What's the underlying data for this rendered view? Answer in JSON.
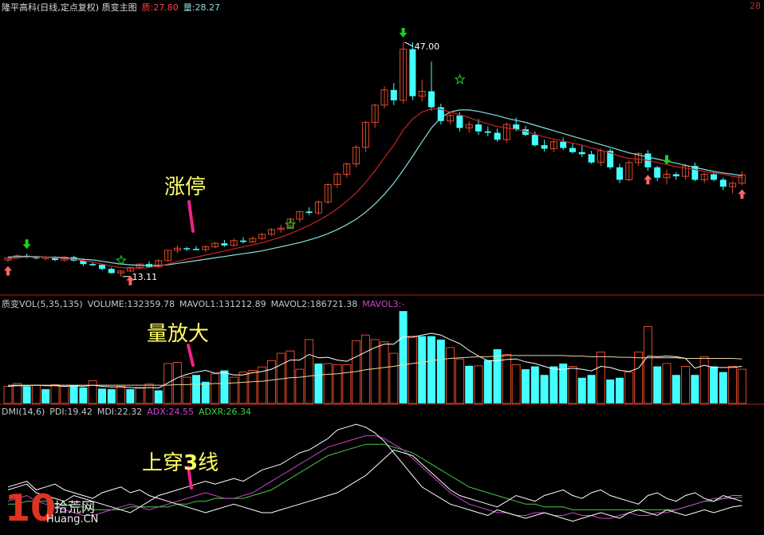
{
  "header": {
    "title": "隆平高科(日线,定点复权) 质变主图",
    "zhi_label": "质:27.80",
    "liang_label": "量:28.27",
    "corner": "28"
  },
  "vol_header": {
    "name": "质变VOL(5,35,135)",
    "volume": "VOLUME:132359.78",
    "mavol1": "MAVOL1:131212.89",
    "mavol2": "MAVOL2:186721.38",
    "mavol3": "MAVOL3:-"
  },
  "dmi_header": {
    "name": "DMI(14,6)",
    "pdi": "PDI:19.42",
    "mdi": "MDI:22.32",
    "adx": "ADX:24.55",
    "adxr": "ADXR:26.34"
  },
  "annotations": {
    "limit_up": "涨停",
    "volume_up": "量放大",
    "cross": "上穿",
    "cross_num": "3",
    "cross_tail": "线"
  },
  "watermark": {
    "number": "10",
    "site": "拾荒网",
    "domain": "Huang.CN"
  },
  "colors": {
    "up": "#e04a2a",
    "down": "#44ffff",
    "ma_red": "#cc2222",
    "ma_cyan": "#88dddd",
    "pdi": "#ffffff",
    "mdi": "#ffffff",
    "adx": "#cc44cc",
    "adxr": "#44cc44",
    "annotation": "#ffff66",
    "arrow_green": "#22cc22",
    "arrow_red": "#ff6666"
  },
  "chart_data": [
    {
      "type": "candlestick",
      "price_labels": {
        "high": "47.00",
        "low": "13.11"
      },
      "candles": [
        [
          15.5,
          15.9,
          15.2,
          15.8
        ],
        [
          15.8,
          16.3,
          15.6,
          16.1
        ],
        [
          16.1,
          16.4,
          15.7,
          15.9
        ],
        [
          15.9,
          16.0,
          15.6,
          15.8
        ],
        [
          15.8,
          16.1,
          15.4,
          15.9
        ],
        [
          15.9,
          16.0,
          15.3,
          15.5
        ],
        [
          15.5,
          16.0,
          15.3,
          15.9
        ],
        [
          15.9,
          16.1,
          15.3,
          15.4
        ],
        [
          15.4,
          15.7,
          14.6,
          14.9
        ],
        [
          14.9,
          15.1,
          14.6,
          14.8
        ],
        [
          14.8,
          15.0,
          14.0,
          14.2
        ],
        [
          14.2,
          14.4,
          13.5,
          13.6
        ],
        [
          13.6,
          14.0,
          13.1,
          13.9
        ],
        [
          13.9,
          14.5,
          13.8,
          14.4
        ],
        [
          14.4,
          15.0,
          14.2,
          14.9
        ],
        [
          14.9,
          15.3,
          14.4,
          14.5
        ],
        [
          14.5,
          15.6,
          14.3,
          15.4
        ],
        [
          15.4,
          16.9,
          15.3,
          16.9
        ],
        [
          16.9,
          17.6,
          16.5,
          17.2
        ],
        [
          17.2,
          17.4,
          16.8,
          17.1
        ],
        [
          17.1,
          17.5,
          16.9,
          17.0
        ],
        [
          17.0,
          17.6,
          16.6,
          17.4
        ],
        [
          17.4,
          18.1,
          17.2,
          17.9
        ],
        [
          17.9,
          18.4,
          17.4,
          17.6
        ],
        [
          17.6,
          18.6,
          17.4,
          18.3
        ],
        [
          18.3,
          18.8,
          17.9,
          18.1
        ],
        [
          18.1,
          18.9,
          18.0,
          18.6
        ],
        [
          18.6,
          19.4,
          18.4,
          19.2
        ],
        [
          19.2,
          20.1,
          19.0,
          19.9
        ],
        [
          19.9,
          20.6,
          19.4,
          20.1
        ],
        [
          20.1,
          21.6,
          19.9,
          21.4
        ],
        [
          21.4,
          22.6,
          20.9,
          22.5
        ],
        [
          22.5,
          23.1,
          22.0,
          22.3
        ],
        [
          22.3,
          24.1,
          22.0,
          23.9
        ],
        [
          23.9,
          26.6,
          23.6,
          26.4
        ],
        [
          26.4,
          28.2,
          25.9,
          27.9
        ],
        [
          27.9,
          29.6,
          27.4,
          29.4
        ],
        [
          29.4,
          32.1,
          28.9,
          31.8
        ],
        [
          31.8,
          35.6,
          31.1,
          35.4
        ],
        [
          35.4,
          38.1,
          34.6,
          37.9
        ],
        [
          37.9,
          40.6,
          37.4,
          40.1
        ],
        [
          40.1,
          41.1,
          37.9,
          38.6
        ],
        [
          38.6,
          47.0,
          38.1,
          46.0
        ],
        [
          46.0,
          47.0,
          38.6,
          39.2
        ],
        [
          39.2,
          41.6,
          38.4,
          39.9
        ],
        [
          39.9,
          44.2,
          37.1,
          37.6
        ],
        [
          37.6,
          38.1,
          35.1,
          35.6
        ],
        [
          35.6,
          36.8,
          35.1,
          36.4
        ],
        [
          36.4,
          36.9,
          34.1,
          34.6
        ],
        [
          34.6,
          35.6,
          33.9,
          35.1
        ],
        [
          35.1,
          35.9,
          33.6,
          34.1
        ],
        [
          34.1,
          34.8,
          33.4,
          33.9
        ],
        [
          33.9,
          34.5,
          32.6,
          32.9
        ],
        [
          32.9,
          35.4,
          32.4,
          35.1
        ],
        [
          35.1,
          36.1,
          34.1,
          34.4
        ],
        [
          34.4,
          34.9,
          33.4,
          33.6
        ],
        [
          33.6,
          34.1,
          31.9,
          32.1
        ],
        [
          32.1,
          32.9,
          31.2,
          31.6
        ],
        [
          31.6,
          32.9,
          31.1,
          32.6
        ],
        [
          32.6,
          33.2,
          31.4,
          31.7
        ],
        [
          31.7,
          32.4,
          30.9,
          31.1
        ],
        [
          31.1,
          32.1,
          30.4,
          30.8
        ],
        [
          30.8,
          31.3,
          29.4,
          29.6
        ],
        [
          29.6,
          31.6,
          29.1,
          31.3
        ],
        [
          31.3,
          31.6,
          28.6,
          28.9
        ],
        [
          28.9,
          29.4,
          26.6,
          27.1
        ],
        [
          27.1,
          29.9,
          26.9,
          29.6
        ],
        [
          29.6,
          31.1,
          29.1,
          30.9
        ],
        [
          30.9,
          31.4,
          28.4,
          28.9
        ],
        [
          28.9,
          29.1,
          26.9,
          27.4
        ],
        [
          27.4,
          28.6,
          26.4,
          27.9
        ],
        [
          27.9,
          28.2,
          27.1,
          27.6
        ],
        [
          27.6,
          29.4,
          27.1,
          29.1
        ],
        [
          29.1,
          29.6,
          26.9,
          27.1
        ],
        [
          27.1,
          28.1,
          26.6,
          27.9
        ],
        [
          27.9,
          28.1,
          26.9,
          27.1
        ],
        [
          27.1,
          27.4,
          25.6,
          26.1
        ],
        [
          26.1,
          26.9,
          25.1,
          26.6
        ],
        [
          26.6,
          28.3,
          26.3,
          27.8
        ]
      ],
      "ma_short": [
        15.6,
        15.8,
        15.9,
        15.9,
        15.9,
        15.8,
        15.7,
        15.6,
        15.4,
        15.2,
        14.9,
        14.6,
        14.4,
        14.3,
        14.3,
        14.4,
        14.6,
        14.9,
        15.3,
        15.6,
        15.9,
        16.2,
        16.5,
        16.8,
        17.1,
        17.4,
        17.7,
        18.0,
        18.4,
        18.8,
        19.3,
        19.9,
        20.5,
        21.2,
        22.0,
        22.9,
        24.0,
        25.2,
        26.7,
        28.4,
        30.3,
        32.1,
        34.3,
        35.9,
        36.9,
        37.4,
        37.3,
        36.9,
        36.5,
        36.1,
        35.6,
        35.2,
        34.8,
        34.6,
        34.4,
        34.1,
        33.7,
        33.3,
        33.0,
        32.7,
        32.4,
        32.1,
        31.7,
        31.4,
        31.0,
        30.5,
        30.2,
        30.1,
        29.9,
        29.6,
        29.3,
        29.0,
        28.8,
        28.6,
        28.3,
        28.1,
        27.9,
        27.6,
        27.4
      ],
      "ma_long": [
        15.9,
        16.0,
        16.0,
        16.0,
        15.9,
        15.9,
        15.8,
        15.7,
        15.6,
        15.5,
        15.3,
        15.1,
        14.9,
        14.8,
        14.7,
        14.7,
        14.7,
        14.8,
        15.0,
        15.2,
        15.4,
        15.6,
        15.8,
        16.0,
        16.2,
        16.4,
        16.6,
        16.8,
        17.1,
        17.4,
        17.7,
        18.0,
        18.4,
        18.8,
        19.3,
        19.9,
        20.6,
        21.4,
        22.4,
        23.6,
        25.0,
        26.6,
        28.5,
        30.5,
        32.6,
        34.6,
        36.1,
        36.9,
        37.2,
        37.2,
        37.0,
        36.7,
        36.4,
        36.0,
        35.7,
        35.4,
        35.0,
        34.6,
        34.2,
        33.8,
        33.4,
        33.0,
        32.6,
        32.2,
        31.8,
        31.4,
        31.0,
        30.7,
        30.4,
        30.1,
        29.8,
        29.5,
        29.2,
        28.9,
        28.6,
        28.3,
        28.1,
        27.9,
        27.7
      ]
    },
    {
      "type": "bar",
      "volume_up": [
        true,
        true,
        false,
        true,
        false,
        true,
        true,
        false,
        false,
        true,
        false,
        false,
        true,
        false,
        true,
        true,
        false,
        true,
        true,
        true,
        false,
        false,
        true,
        false,
        true,
        true,
        true,
        true,
        true,
        true,
        true,
        true,
        true,
        false,
        true,
        true,
        true,
        true,
        true,
        true,
        true,
        true,
        false,
        true,
        false,
        false,
        false,
        true,
        true,
        false,
        true,
        false,
        false,
        true,
        true,
        false,
        false,
        false,
        false,
        false,
        true,
        false,
        false,
        true,
        false,
        false,
        true,
        true,
        true,
        false,
        true,
        false,
        true,
        false,
        true,
        false,
        false,
        true,
        true
      ],
      "volume": [
        30,
        35,
        30,
        32,
        25,
        33,
        30,
        32,
        28,
        40,
        26,
        25,
        30,
        25,
        28,
        34,
        23,
        70,
        72,
        46,
        50,
        38,
        52,
        58,
        46,
        55,
        58,
        64,
        75,
        88,
        92,
        60,
        112,
        70,
        70,
        68,
        68,
        110,
        120,
        112,
        108,
        88,
        162,
        118,
        118,
        118,
        112,
        98,
        78,
        66,
        66,
        76,
        95,
        86,
        68,
        60,
        65,
        50,
        65,
        70,
        65,
        45,
        50,
        90,
        42,
        45,
        55,
        90,
        135,
        65,
        70,
        50,
        65,
        50,
        82,
        65,
        55,
        65,
        60
      ],
      "mavol1": [
        30,
        31,
        31,
        32,
        31,
        31,
        30,
        31,
        30,
        32,
        30,
        29,
        29,
        28,
        27,
        28,
        27,
        36,
        45,
        51,
        55,
        58,
        53,
        54,
        50,
        50,
        54,
        56,
        60,
        68,
        76,
        76,
        86,
        80,
        81,
        76,
        74,
        82,
        90,
        98,
        104,
        104,
        117,
        116,
        120,
        123,
        120,
        112,
        105,
        93,
        83,
        75,
        75,
        77,
        78,
        73,
        70,
        65,
        60,
        60,
        62,
        60,
        57,
        65,
        63,
        58,
        56,
        62,
        83,
        82,
        83,
        82,
        79,
        62,
        67,
        63,
        63,
        63,
        65
      ],
      "mavol2": [
        32,
        32,
        32,
        32,
        32,
        32,
        32,
        32,
        32,
        32,
        32,
        32,
        32,
        32,
        32,
        32,
        32,
        32,
        33,
        33,
        34,
        34,
        35,
        35,
        36,
        37,
        38,
        39,
        41,
        43,
        45,
        46,
        48,
        50,
        51,
        52,
        54,
        56,
        59,
        61,
        63,
        65,
        68,
        70,
        72,
        75,
        77,
        79,
        80,
        81,
        82,
        82,
        83,
        84,
        84,
        84,
        84,
        84,
        84,
        84,
        83,
        83,
        82,
        82,
        82,
        81,
        81,
        80,
        80,
        80,
        80,
        80,
        79,
        79,
        79,
        79,
        79,
        79,
        78
      ]
    },
    {
      "type": "line",
      "pdi": [
        30,
        32,
        34,
        28,
        26,
        24,
        22,
        26,
        24,
        22,
        20,
        18,
        16,
        14,
        18,
        22,
        26,
        28,
        30,
        32,
        34,
        36,
        34,
        36,
        38,
        36,
        40,
        44,
        46,
        48,
        52,
        56,
        58,
        62,
        66,
        72,
        74,
        76,
        74,
        70,
        64,
        56,
        48,
        40,
        32,
        28,
        24,
        20,
        18,
        16,
        14,
        12,
        16,
        14,
        12,
        10,
        12,
        14,
        12,
        10,
        8,
        10,
        12,
        14,
        12,
        10,
        14,
        16,
        14,
        12,
        16,
        14,
        12,
        14,
        16,
        14,
        16,
        18,
        19
      ],
      "mdi": [
        32,
        34,
        36,
        30,
        32,
        34,
        30,
        28,
        26,
        24,
        28,
        30,
        32,
        28,
        30,
        26,
        24,
        22,
        20,
        18,
        16,
        14,
        16,
        18,
        20,
        18,
        16,
        14,
        14,
        16,
        18,
        20,
        22,
        24,
        26,
        28,
        32,
        36,
        40,
        46,
        52,
        58,
        56,
        54,
        48,
        42,
        36,
        30,
        26,
        24,
        22,
        20,
        18,
        22,
        26,
        24,
        22,
        26,
        28,
        30,
        26,
        24,
        28,
        30,
        26,
        24,
        22,
        20,
        26,
        28,
        24,
        22,
        26,
        28,
        24,
        22,
        26,
        24,
        22
      ],
      "adx": [
        22,
        24,
        26,
        22,
        20,
        18,
        16,
        14,
        12,
        12,
        14,
        16,
        18,
        20,
        18,
        16,
        18,
        20,
        22,
        24,
        26,
        28,
        26,
        24,
        24,
        26,
        28,
        32,
        36,
        40,
        44,
        48,
        52,
        56,
        60,
        62,
        64,
        66,
        68,
        68,
        66,
        62,
        58,
        52,
        46,
        40,
        34,
        28,
        24,
        20,
        18,
        16,
        14,
        14,
        12,
        12,
        14,
        14,
        12,
        12,
        14,
        12,
        12,
        10,
        10,
        12,
        14,
        12,
        12,
        14,
        14,
        16,
        18,
        20,
        22,
        24,
        24,
        24,
        25
      ],
      "adxr": [
        20,
        20,
        22,
        22,
        22,
        20,
        20,
        18,
        18,
        16,
        16,
        16,
        16,
        18,
        18,
        18,
        18,
        18,
        20,
        20,
        22,
        22,
        24,
        24,
        24,
        24,
        26,
        28,
        30,
        34,
        38,
        42,
        46,
        50,
        54,
        56,
        58,
        60,
        62,
        62,
        62,
        60,
        58,
        56,
        52,
        48,
        44,
        40,
        36,
        32,
        30,
        28,
        26,
        24,
        22,
        20,
        20,
        18,
        18,
        18,
        16,
        16,
        16,
        16,
        16,
        16,
        16,
        16,
        16,
        16,
        16,
        16,
        18,
        20,
        22,
        22,
        24,
        26,
        26
      ]
    }
  ]
}
